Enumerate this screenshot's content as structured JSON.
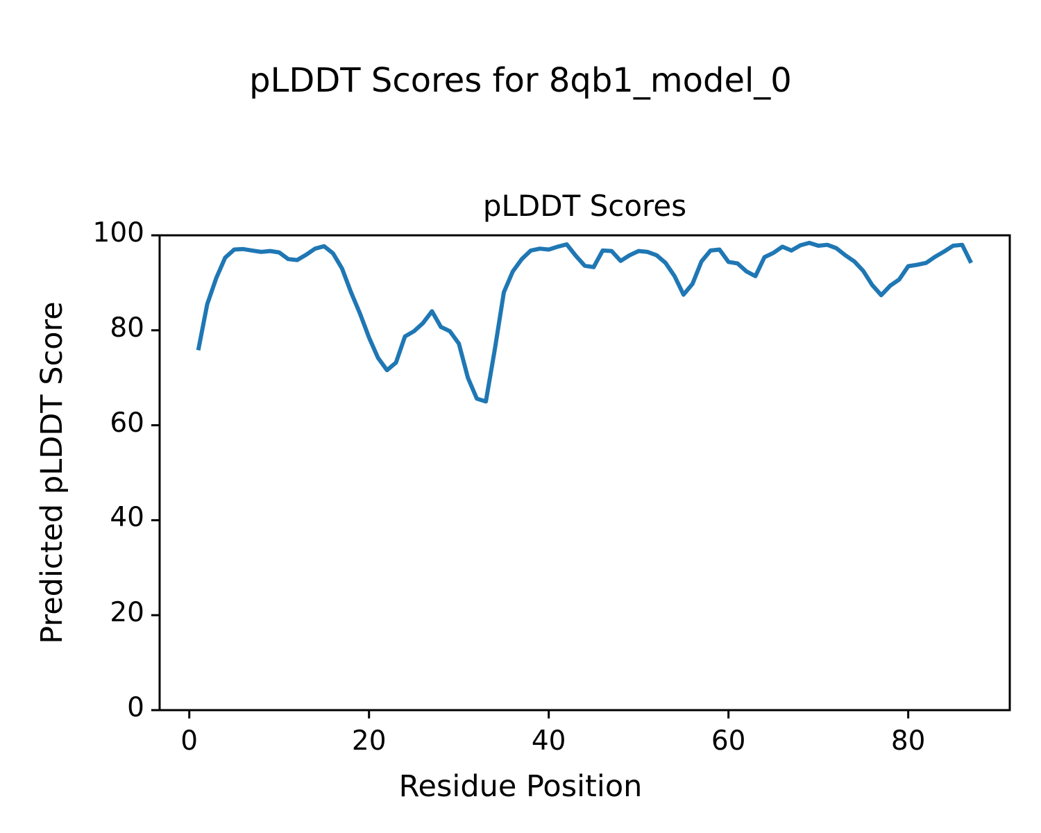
{
  "figure": {
    "suptitle": "pLDDT Scores for 8qb1_model_0",
    "background": "#ffffff"
  },
  "chart_data": {
    "type": "line",
    "title": "pLDDT Scores",
    "suptitle": "pLDDT Scores for 8qb1_model_0",
    "xlabel": "Residue Position",
    "ylabel": "Predicted pLDDT Score",
    "xlim": [
      -3.3,
      91.3
    ],
    "ylim": [
      0,
      100
    ],
    "x_ticks": [
      0,
      20,
      40,
      60,
      80
    ],
    "y_ticks": [
      0,
      20,
      40,
      60,
      80,
      100
    ],
    "grid": false,
    "legend_position": "none",
    "line_color": "#1f77b4",
    "axis_color": "#000000",
    "series": [
      {
        "name": "pLDDT",
        "x": [
          1,
          2,
          3,
          4,
          5,
          6,
          7,
          8,
          9,
          10,
          11,
          12,
          13,
          14,
          15,
          16,
          17,
          18,
          19,
          20,
          21,
          22,
          23,
          24,
          25,
          26,
          27,
          28,
          29,
          30,
          31,
          32,
          33,
          34,
          35,
          36,
          37,
          38,
          39,
          40,
          41,
          42,
          43,
          44,
          45,
          46,
          47,
          48,
          49,
          50,
          51,
          52,
          53,
          54,
          55,
          56,
          57,
          58,
          59,
          60,
          61,
          62,
          63,
          64,
          65,
          66,
          67,
          68,
          69,
          70,
          71,
          72,
          73,
          74,
          75,
          76,
          77,
          78,
          79,
          80,
          81,
          82,
          83,
          84,
          85,
          86,
          87
        ],
        "values": [
          75.8,
          85.5,
          91.0,
          95.3,
          97.0,
          97.1,
          96.8,
          96.5,
          96.7,
          96.4,
          95.0,
          94.8,
          95.9,
          97.2,
          97.7,
          96.2,
          93.0,
          88.0,
          83.5,
          78.5,
          74.2,
          71.6,
          73.2,
          78.7,
          79.8,
          81.5,
          84.0,
          80.7,
          79.8,
          77.2,
          70.0,
          65.6,
          65.0,
          76.0,
          88.0,
          92.4,
          95.0,
          96.8,
          97.2,
          97.0,
          97.6,
          98.1,
          95.7,
          93.6,
          93.3,
          96.8,
          96.7,
          94.6,
          95.8,
          96.7,
          96.5,
          95.8,
          94.2,
          91.4,
          87.5,
          89.8,
          94.5,
          96.8,
          97.0,
          94.4,
          94.1,
          92.4,
          91.4,
          95.4,
          96.3,
          97.6,
          96.8,
          97.9,
          98.4,
          97.8,
          98.0,
          97.3,
          95.8,
          94.5,
          92.5,
          89.5,
          87.4,
          89.4,
          90.7,
          93.5,
          93.8,
          94.2,
          95.5,
          96.6,
          97.8,
          98.0,
          94.2
        ]
      }
    ]
  }
}
